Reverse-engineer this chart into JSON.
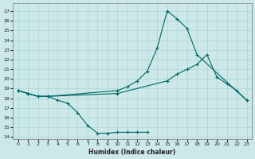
{
  "xlabel": "Humidex (Indice chaleur)",
  "bg_color": "#cce8e8",
  "line_color": "#006666",
  "grid_color": "#aad4d4",
  "xlim": [
    -0.5,
    23.5
  ],
  "ylim": [
    13.8,
    27.8
  ],
  "yticks": [
    14,
    15,
    16,
    17,
    18,
    19,
    20,
    21,
    22,
    23,
    24,
    25,
    26,
    27
  ],
  "xticks": [
    0,
    1,
    2,
    3,
    4,
    5,
    6,
    7,
    8,
    9,
    10,
    11,
    12,
    13,
    14,
    15,
    16,
    17,
    18,
    19,
    20,
    21,
    22,
    23
  ],
  "line1_x": [
    0,
    1,
    2,
    3,
    4,
    5,
    6,
    7,
    8,
    9,
    10,
    11,
    12,
    13
  ],
  "line1_y": [
    18.8,
    18.5,
    18.2,
    18.2,
    17.8,
    17.5,
    16.5,
    15.2,
    14.4,
    14.4,
    14.5,
    14.5,
    14.5,
    14.5
  ],
  "line2_x": [
    0,
    1,
    2,
    3,
    10,
    11,
    12,
    13,
    14,
    15,
    16,
    17,
    18,
    23
  ],
  "line2_y": [
    18.8,
    18.5,
    18.2,
    18.2,
    18.8,
    19.2,
    19.8,
    20.8,
    23.2,
    27.0,
    26.2,
    25.2,
    22.5,
    17.8
  ],
  "line3_x": [
    0,
    1,
    2,
    3,
    10,
    15,
    16,
    17,
    18,
    19,
    20,
    21,
    22,
    23
  ],
  "line3_y": [
    18.8,
    18.5,
    18.2,
    18.2,
    18.5,
    19.8,
    20.5,
    21.0,
    21.5,
    22.5,
    20.2,
    19.5,
    18.8,
    17.8
  ]
}
